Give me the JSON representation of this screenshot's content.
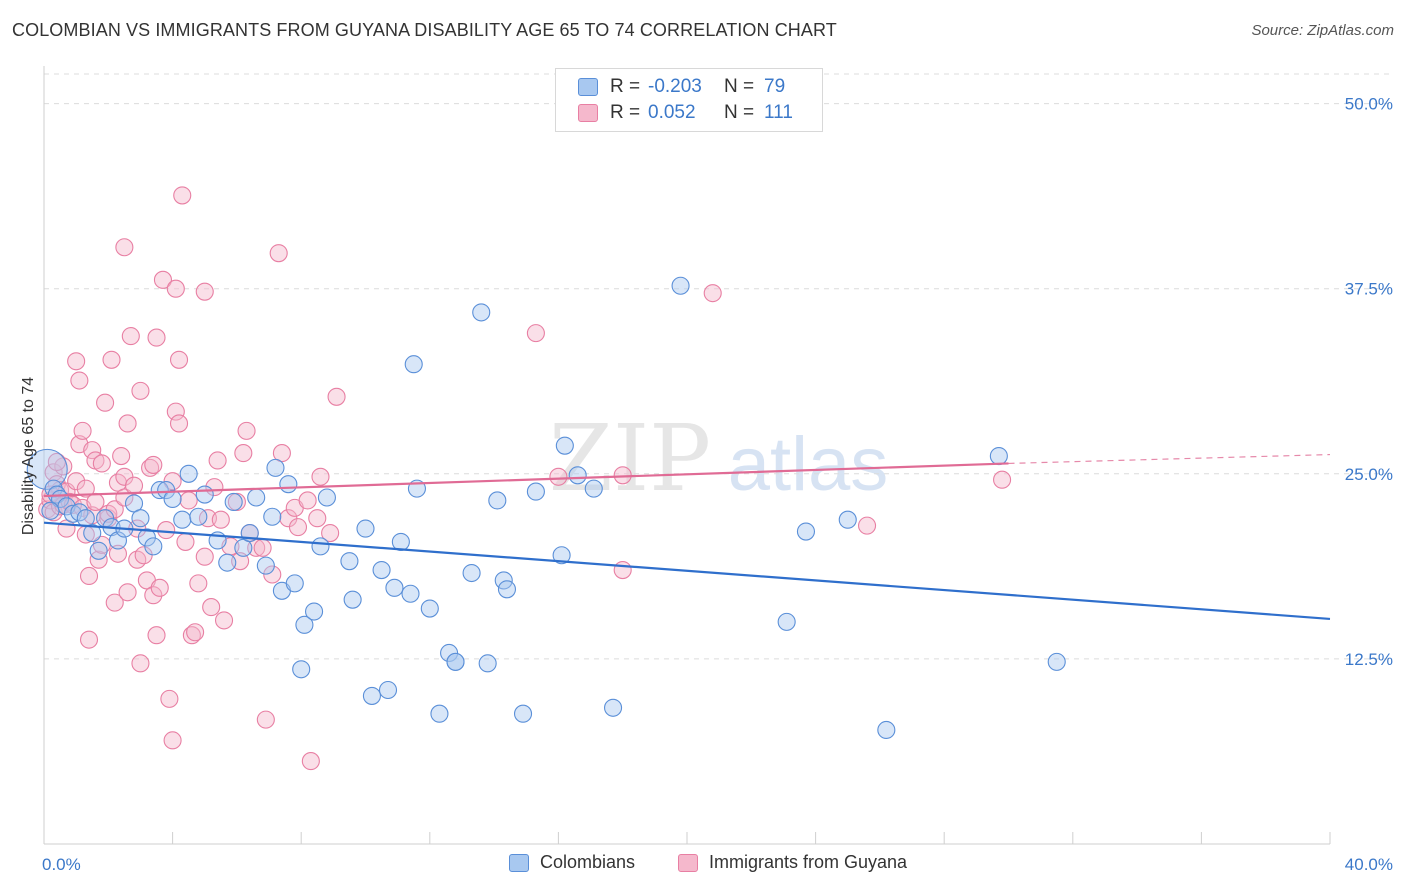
{
  "header": {
    "title": "COLOMBIAN VS IMMIGRANTS FROM GUYANA DISABILITY AGE 65 TO 74 CORRELATION CHART",
    "source": "Source: ZipAtlas.com"
  },
  "watermark": {
    "zip": "ZIP",
    "atlas": "atlas"
  },
  "legend": {
    "rows": [
      {
        "r_label": "R =",
        "r_value": "-0.203",
        "n_label": "N =",
        "n_value": "79"
      },
      {
        "r_label": "R =",
        "r_value": "0.052",
        "n_label": "N =",
        "n_value": "111"
      }
    ]
  },
  "bottom_legend": {
    "series1": "Colombians",
    "series2": "Immigrants from Guyana"
  },
  "colors": {
    "blue_fill": "#a8c8f0",
    "blue_stroke": "#5a8fd8",
    "blue_line": "#2f6fcc",
    "pink_fill": "#f5b8cc",
    "pink_stroke": "#e87fa3",
    "pink_line": "#e06b95",
    "tick_text": "#3b78c9",
    "grid": "#dcdcdc"
  },
  "chart_data": {
    "type": "scatter",
    "title": "COLOMBIAN VS IMMIGRANTS FROM GUYANA DISABILITY AGE 65 TO 74 CORRELATION CHART",
    "xlabel": "",
    "ylabel": "Disability Age 65 to 74",
    "xlim": [
      0,
      40
    ],
    "ylim": [
      0,
      52
    ],
    "y_ticks": [
      {
        "value": 12.5,
        "label": "12.5%"
      },
      {
        "value": 25.0,
        "label": "25.0%"
      },
      {
        "value": 37.5,
        "label": "37.5%"
      },
      {
        "value": 50.0,
        "label": "50.0%"
      }
    ],
    "x_tick_labels": [
      {
        "value": 0,
        "label": "0.0%"
      },
      {
        "value": 40,
        "label": "40.0%"
      }
    ],
    "x_minor_ticks": [
      0,
      4,
      8,
      12,
      16,
      20,
      24,
      28,
      32,
      36,
      40
    ],
    "grid": "horizontal dashed",
    "legend_position": "top-center",
    "series": [
      {
        "name": "Colombians",
        "color": "#a8c8f0",
        "trend": {
          "x": [
            0,
            40
          ],
          "y": [
            21.7,
            15.2
          ],
          "style": "solid"
        },
        "points": [
          [
            0.1,
            25.3
          ],
          [
            0.3,
            24.0
          ],
          [
            0.4,
            23.6
          ],
          [
            0.5,
            23.3
          ],
          [
            0.7,
            22.8
          ],
          [
            0.9,
            22.3
          ],
          [
            1.1,
            22.4
          ],
          [
            1.3,
            22.0
          ],
          [
            1.5,
            21.0
          ],
          [
            1.7,
            19.8
          ],
          [
            1.9,
            22.0
          ],
          [
            2.1,
            21.4
          ],
          [
            2.3,
            20.5
          ],
          [
            2.5,
            21.3
          ],
          [
            2.8,
            23.0
          ],
          [
            3.0,
            22.0
          ],
          [
            3.2,
            20.7
          ],
          [
            3.4,
            20.1
          ],
          [
            3.6,
            23.9
          ],
          [
            3.8,
            23.9
          ],
          [
            4.0,
            23.3
          ],
          [
            4.3,
            21.9
          ],
          [
            4.5,
            25.0
          ],
          [
            4.8,
            22.1
          ],
          [
            5.0,
            23.6
          ],
          [
            5.4,
            20.5
          ],
          [
            5.7,
            19.0
          ],
          [
            5.9,
            23.1
          ],
          [
            6.2,
            20.0
          ],
          [
            6.4,
            21.0
          ],
          [
            6.6,
            23.4
          ],
          [
            6.9,
            18.8
          ],
          [
            7.1,
            22.1
          ],
          [
            7.2,
            25.4
          ],
          [
            7.4,
            17.1
          ],
          [
            7.6,
            24.3
          ],
          [
            7.8,
            17.6
          ],
          [
            8.0,
            11.8
          ],
          [
            8.1,
            14.8
          ],
          [
            8.4,
            15.7
          ],
          [
            8.6,
            20.1
          ],
          [
            8.8,
            23.4
          ],
          [
            9.5,
            19.1
          ],
          [
            9.6,
            16.5
          ],
          [
            10.0,
            21.3
          ],
          [
            10.2,
            10.0
          ],
          [
            10.5,
            18.5
          ],
          [
            10.7,
            10.4
          ],
          [
            10.9,
            17.3
          ],
          [
            11.1,
            20.4
          ],
          [
            11.4,
            16.9
          ],
          [
            11.5,
            32.4
          ],
          [
            11.6,
            24.0
          ],
          [
            12.0,
            15.9
          ],
          [
            12.3,
            8.8
          ],
          [
            12.6,
            12.9
          ],
          [
            12.8,
            12.3
          ],
          [
            12.8,
            12.3
          ],
          [
            13.3,
            18.3
          ],
          [
            13.6,
            35.9
          ],
          [
            13.8,
            12.2
          ],
          [
            14.1,
            23.2
          ],
          [
            14.3,
            17.8
          ],
          [
            14.4,
            17.2
          ],
          [
            14.9,
            8.8
          ],
          [
            15.3,
            23.8
          ],
          [
            16.1,
            19.5
          ],
          [
            16.2,
            26.9
          ],
          [
            16.6,
            24.9
          ],
          [
            17.1,
            24.0
          ],
          [
            17.7,
            9.2
          ],
          [
            19.8,
            37.7
          ],
          [
            23.1,
            15.0
          ],
          [
            23.7,
            21.1
          ],
          [
            25.0,
            21.9
          ],
          [
            26.2,
            7.7
          ],
          [
            29.7,
            26.2
          ],
          [
            31.5,
            12.3
          ],
          [
            0.2,
            22.5
          ]
        ]
      },
      {
        "name": "Immigrants from Guyana",
        "color": "#f5b8cc",
        "trend": {
          "x": [
            0,
            30
          ],
          "y": [
            23.5,
            25.7
          ],
          "style": "solid",
          "extended_to": [
            40,
            26.3
          ]
        },
        "points": [
          [
            0.1,
            22.6
          ],
          [
            0.2,
            23.2
          ],
          [
            0.3,
            22.4
          ],
          [
            0.3,
            25.1
          ],
          [
            0.4,
            24.3
          ],
          [
            0.5,
            23.9
          ],
          [
            0.5,
            22.8
          ],
          [
            0.6,
            22.9
          ],
          [
            0.6,
            25.5
          ],
          [
            0.7,
            23.8
          ],
          [
            0.7,
            21.3
          ],
          [
            0.8,
            23.1
          ],
          [
            0.9,
            22.9
          ],
          [
            1.0,
            24.5
          ],
          [
            1.0,
            32.6
          ],
          [
            1.1,
            31.3
          ],
          [
            1.1,
            27.0
          ],
          [
            1.2,
            22.7
          ],
          [
            1.2,
            27.9
          ],
          [
            1.3,
            24.0
          ],
          [
            1.3,
            20.9
          ],
          [
            1.4,
            18.1
          ],
          [
            1.4,
            13.8
          ],
          [
            1.5,
            26.6
          ],
          [
            1.5,
            22.2
          ],
          [
            1.6,
            25.9
          ],
          [
            1.6,
            23.1
          ],
          [
            1.7,
            19.2
          ],
          [
            1.8,
            25.7
          ],
          [
            1.8,
            20.2
          ],
          [
            1.9,
            29.8
          ],
          [
            2.0,
            22.0
          ],
          [
            2.0,
            22.3
          ],
          [
            2.1,
            32.7
          ],
          [
            2.2,
            16.3
          ],
          [
            2.2,
            22.6
          ],
          [
            2.3,
            24.4
          ],
          [
            2.3,
            19.6
          ],
          [
            2.4,
            26.2
          ],
          [
            2.5,
            24.8
          ],
          [
            2.5,
            40.3
          ],
          [
            2.5,
            23.4
          ],
          [
            2.6,
            28.4
          ],
          [
            2.6,
            17.0
          ],
          [
            2.7,
            34.3
          ],
          [
            2.8,
            24.2
          ],
          [
            2.9,
            21.3
          ],
          [
            2.9,
            19.2
          ],
          [
            3.0,
            30.6
          ],
          [
            3.0,
            12.2
          ],
          [
            3.1,
            19.5
          ],
          [
            3.2,
            17.8
          ],
          [
            3.3,
            25.4
          ],
          [
            3.4,
            25.6
          ],
          [
            3.4,
            16.8
          ],
          [
            3.5,
            34.2
          ],
          [
            3.5,
            14.1
          ],
          [
            3.6,
            17.3
          ],
          [
            3.7,
            38.1
          ],
          [
            3.8,
            21.2
          ],
          [
            3.9,
            9.8
          ],
          [
            4.0,
            7.0
          ],
          [
            4.0,
            24.5
          ],
          [
            4.1,
            29.2
          ],
          [
            4.1,
            37.5
          ],
          [
            4.2,
            28.4
          ],
          [
            4.2,
            32.7
          ],
          [
            4.3,
            43.8
          ],
          [
            4.4,
            20.4
          ],
          [
            4.5,
            23.2
          ],
          [
            4.6,
            14.1
          ],
          [
            4.7,
            14.3
          ],
          [
            4.8,
            17.6
          ],
          [
            5.0,
            37.3
          ],
          [
            5.0,
            19.4
          ],
          [
            5.1,
            22.0
          ],
          [
            5.2,
            16.0
          ],
          [
            5.3,
            24.1
          ],
          [
            5.4,
            25.9
          ],
          [
            5.5,
            21.9
          ],
          [
            5.6,
            15.1
          ],
          [
            5.8,
            20.1
          ],
          [
            6.0,
            23.1
          ],
          [
            6.1,
            19.1
          ],
          [
            6.2,
            26.4
          ],
          [
            6.3,
            27.9
          ],
          [
            6.4,
            21.0
          ],
          [
            6.6,
            20.0
          ],
          [
            6.8,
            20.0
          ],
          [
            6.9,
            8.4
          ],
          [
            7.1,
            18.2
          ],
          [
            7.3,
            39.9
          ],
          [
            7.4,
            26.4
          ],
          [
            7.6,
            22.0
          ],
          [
            7.8,
            22.7
          ],
          [
            7.9,
            21.4
          ],
          [
            8.2,
            23.2
          ],
          [
            8.3,
            5.6
          ],
          [
            8.5,
            22.0
          ],
          [
            8.6,
            24.8
          ],
          [
            8.9,
            21.0
          ],
          [
            9.1,
            30.2
          ],
          [
            15.3,
            34.5
          ],
          [
            16.0,
            24.8
          ],
          [
            18.0,
            18.5
          ],
          [
            18.0,
            24.9
          ],
          [
            20.8,
            37.2
          ],
          [
            25.6,
            21.5
          ],
          [
            29.8,
            24.6
          ],
          [
            0.2,
            23.6
          ],
          [
            0.4,
            25.8
          ]
        ]
      }
    ]
  }
}
